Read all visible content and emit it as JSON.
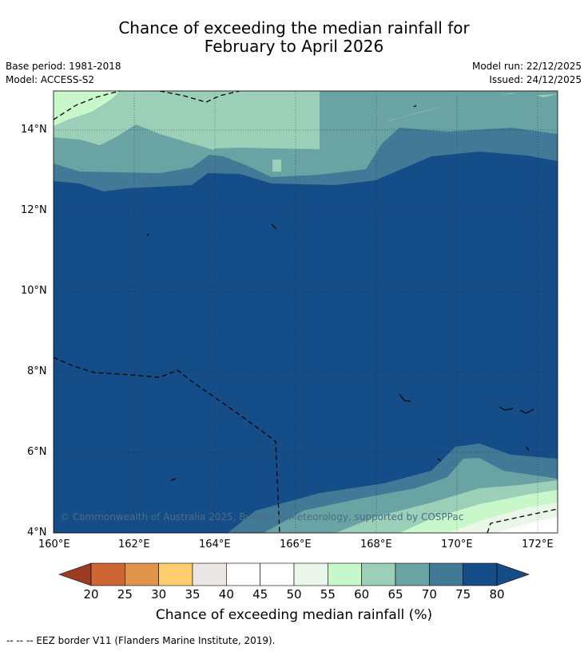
{
  "title_line1": "Chance of exceeding the median rainfall for",
  "title_line2": "February to April 2026",
  "base_period": "Base period: 1981-2018",
  "model": "Model: ACCESS-S2",
  "model_run": "Model run: 22/12/2025",
  "issued": "Issued: 24/12/2025",
  "map": {
    "lon_ticks": [
      "160°E",
      "162°E",
      "164°E",
      "166°E",
      "168°E",
      "170°E",
      "172°E"
    ],
    "lat_ticks": [
      "14°N",
      "12°N",
      "10°N",
      "8°N",
      "6°N",
      "4°N"
    ],
    "copyright": "© Commonwealth of Australia 2025, Bureau of Meteorology, supported by COSPPac"
  },
  "colorbar": {
    "labels": [
      "20",
      "25",
      "30",
      "35",
      "40",
      "45",
      "50",
      "55",
      "60",
      "65",
      "70",
      "75",
      "80"
    ],
    "colors": [
      "#b44a27",
      "#cd6534",
      "#e1934a",
      "#fdcc6b",
      "#ece7e5",
      "#ffffff",
      "#ffffff",
      "#eaf6e8",
      "#c8f8ca",
      "#9ccfb7",
      "#6aa3a4",
      "#417997",
      "#154d88"
    ],
    "title": "Chance of exceeding median rainfall (%)"
  },
  "footnote": "--  --  -- EEZ border V11 (Flanders Marine Institute, 2019)."
}
